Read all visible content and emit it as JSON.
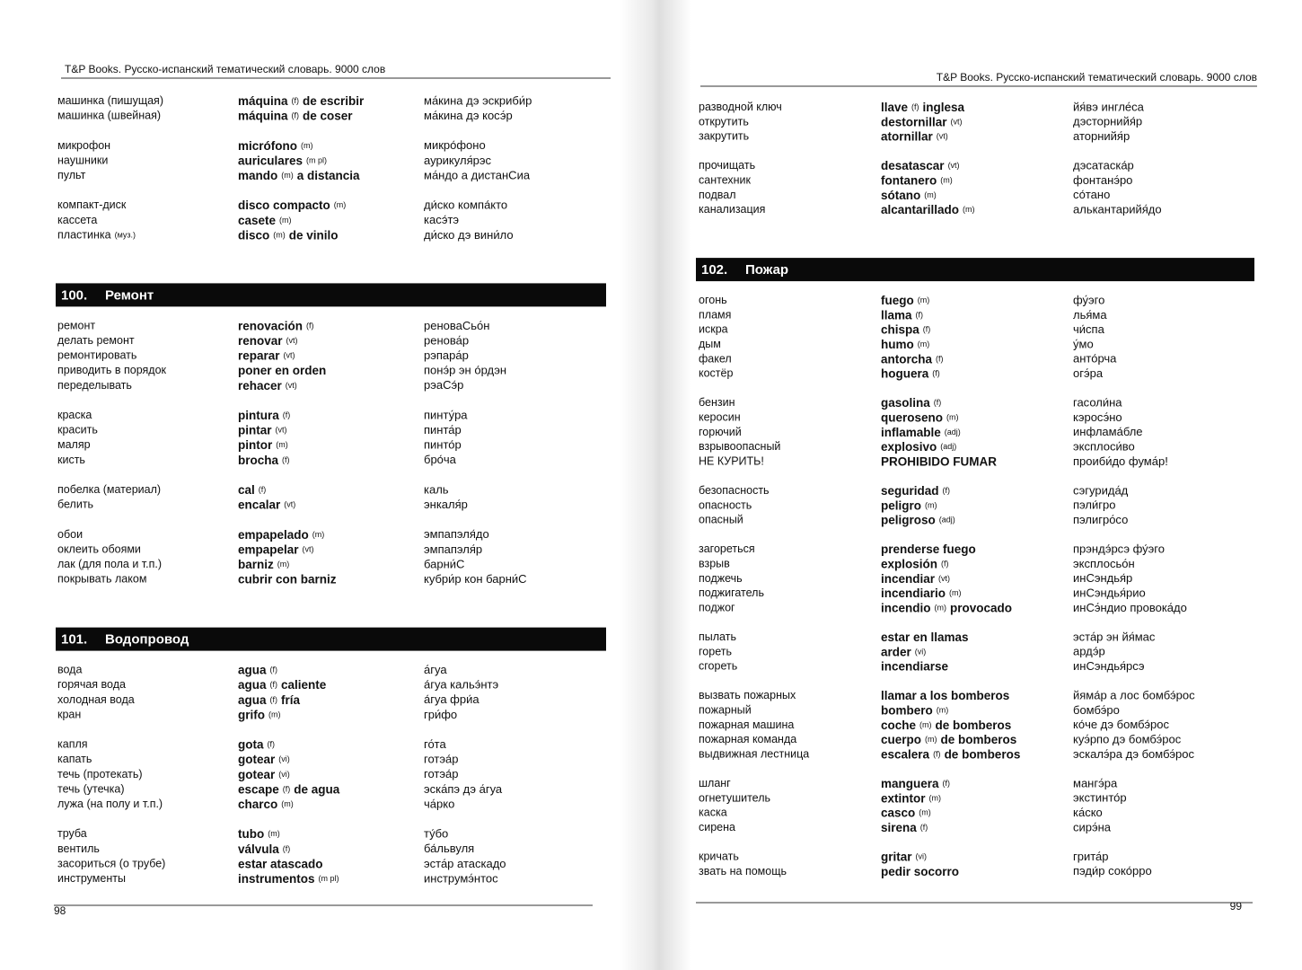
{
  "pages": [
    {
      "header": "T&P Books. Русско-испанский тематический словарь. 9000 слов",
      "page_number": "98",
      "blocks": [
        {
          "groups": [
            [
              {
                "ru": "машинка (пишущая)",
                "es": [
                  "máquina",
                  "(f)",
                  "de escribir"
                ],
                "tr": "ма́кина дэ эскриби́р"
              },
              {
                "ru": "машинка (швейная)",
                "es": [
                  "máquina",
                  "(f)",
                  "de coser"
                ],
                "tr": "ма́кина дэ косэ́р"
              }
            ],
            [
              {
                "ru": "микрофон",
                "es": [
                  "micrófono",
                  "(m)"
                ],
                "tr": "микро́фоно"
              },
              {
                "ru": "наушники",
                "es": [
                  "auriculares",
                  "(m pl)"
                ],
                "tr": "аурикуля́рэс"
              },
              {
                "ru": "пульт",
                "es": [
                  "mando",
                  "(m)",
                  "a distancia"
                ],
                "tr": "ма́ндо а дистанСиа"
              }
            ],
            [
              {
                "ru": "компакт-диск",
                "es": [
                  "disco compacto",
                  "(m)"
                ],
                "tr": "ди́ско компа́кто"
              },
              {
                "ru": "кассета",
                "es": [
                  "casete",
                  "(m)"
                ],
                "tr": "касэ́тэ"
              },
              {
                "ru": "пластинка",
                "ru_note": "(муз.)",
                "es": [
                  "disco",
                  "(m)",
                  "de vinilo"
                ],
                "tr": "ди́ско дэ вини́ло"
              }
            ]
          ]
        },
        {
          "section": {
            "number": "100.",
            "title": "Ремонт"
          },
          "groups": [
            [
              {
                "ru": "ремонт",
                "es": [
                  "renovación",
                  "(f)"
                ],
                "tr": "реноваСьо́н"
              },
              {
                "ru": "делать ремонт",
                "es": [
                  "renovar",
                  "(vt)"
                ],
                "tr": "ренова́р"
              },
              {
                "ru": "ремонтировать",
                "es": [
                  "reparar",
                  "(vt)"
                ],
                "tr": "рэпара́р"
              },
              {
                "ru": "приводить в порядок",
                "es": [
                  "poner en orden"
                ],
                "tr": "понэ́р эн о́рдэн"
              },
              {
                "ru": "переделывать",
                "es": [
                  "rehacer",
                  "(vt)"
                ],
                "tr": "рэаСэ́р"
              }
            ],
            [
              {
                "ru": "краска",
                "es": [
                  "pintura",
                  "(f)"
                ],
                "tr": "пинту́ра"
              },
              {
                "ru": "красить",
                "es": [
                  "pintar",
                  "(vt)"
                ],
                "tr": "пинта́р"
              },
              {
                "ru": "маляр",
                "es": [
                  "pintor",
                  "(m)"
                ],
                "tr": "пинто́р"
              },
              {
                "ru": "кисть",
                "es": [
                  "brocha",
                  "(f)"
                ],
                "tr": "бро́ча"
              }
            ],
            [
              {
                "ru": "побелка (материал)",
                "es": [
                  "cal",
                  "(f)"
                ],
                "tr": "каль"
              },
              {
                "ru": "белить",
                "es": [
                  "encalar",
                  "(vt)"
                ],
                "tr": "энкаля́р"
              }
            ],
            [
              {
                "ru": "обои",
                "es": [
                  "empapelado",
                  "(m)"
                ],
                "tr": "эмпапэля́до"
              },
              {
                "ru": "оклеить обоями",
                "es": [
                  "empapelar",
                  "(vt)"
                ],
                "tr": "эмпапэля́р"
              },
              {
                "ru": "лак (для пола и т.п.)",
                "es": [
                  "barniz",
                  "(m)"
                ],
                "tr": "барни́С"
              },
              {
                "ru": "покрывать лаком",
                "es": [
                  "cubrir con barniz"
                ],
                "tr": "кубри́р кон барни́С"
              }
            ]
          ]
        },
        {
          "section": {
            "number": "101.",
            "title": "Водопровод"
          },
          "groups": [
            [
              {
                "ru": "вода",
                "es": [
                  "agua",
                  "(f)"
                ],
                "tr": "а́гуа"
              },
              {
                "ru": "горячая вода",
                "es": [
                  "agua",
                  "(f)",
                  "caliente"
                ],
                "tr": "а́гуа кальэ́нтэ"
              },
              {
                "ru": "холодная вода",
                "es": [
                  "agua",
                  "(f)",
                  "fría"
                ],
                "tr": "а́гуа фри́а"
              },
              {
                "ru": "кран",
                "es": [
                  "grifo",
                  "(m)"
                ],
                "tr": "гри́фо"
              }
            ],
            [
              {
                "ru": "капля",
                "es": [
                  "gota",
                  "(f)"
                ],
                "tr": "го́та"
              },
              {
                "ru": "капать",
                "es": [
                  "gotear",
                  "(vi)"
                ],
                "tr": "готэа́р"
              },
              {
                "ru": "течь (протекать)",
                "es": [
                  "gotear",
                  "(vi)"
                ],
                "tr": "готэа́р"
              },
              {
                "ru": "течь (утечка)",
                "es": [
                  "escape",
                  "(f)",
                  "de agua"
                ],
                "tr": "эска́пэ дэ а́гуа"
              },
              {
                "ru": "лужа (на полу и т.п.)",
                "es": [
                  "charco",
                  "(m)"
                ],
                "tr": "ча́рко"
              }
            ],
            [
              {
                "ru": "труба",
                "es": [
                  "tubo",
                  "(m)"
                ],
                "tr": "ту́бо"
              },
              {
                "ru": "вентиль",
                "es": [
                  "válvula",
                  "(f)"
                ],
                "tr": "ба́львуля"
              },
              {
                "ru": "засориться (о трубе)",
                "es": [
                  "estar atascado"
                ],
                "tr": "эста́р атаскадо"
              },
              {
                "ru": "инструменты",
                "es": [
                  "instrumentos",
                  "(m pl)"
                ],
                "tr": "инструмэ́нтос"
              }
            ]
          ]
        }
      ]
    },
    {
      "header": "T&P Books. Русско-испанский тематический словарь. 9000 слов",
      "page_number": "99",
      "blocks": [
        {
          "groups": [
            [
              {
                "ru": "разводной ключ",
                "es": [
                  "llave",
                  "(f)",
                  "inglesa"
                ],
                "tr": "йя́вэ ингле́са"
              },
              {
                "ru": "открутить",
                "es": [
                  "destornillar",
                  "(vt)"
                ],
                "tr": "дэсторнийя́р"
              },
              {
                "ru": "закрутить",
                "es": [
                  "atornillar",
                  "(vt)"
                ],
                "tr": "аторнийя́р"
              }
            ],
            [
              {
                "ru": "прочищать",
                "es": [
                  "desatascar",
                  "(vt)"
                ],
                "tr": "дэсатаска́р"
              },
              {
                "ru": "сантехник",
                "es": [
                  "fontanero",
                  "(m)"
                ],
                "tr": "фонтанэ́ро"
              },
              {
                "ru": "подвал",
                "es": [
                  "sótano",
                  "(m)"
                ],
                "tr": "со́тано"
              },
              {
                "ru": "канализация",
                "es": [
                  "alcantarillado",
                  "(m)"
                ],
                "tr": "алькантарийя́до"
              }
            ]
          ]
        },
        {
          "section": {
            "number": "102.",
            "title": "Пожар"
          },
          "groups": [
            [
              {
                "ru": "огонь",
                "es": [
                  "fuego",
                  "(m)"
                ],
                "tr": "фу́эго"
              },
              {
                "ru": "пламя",
                "es": [
                  "llama",
                  "(f)"
                ],
                "tr": "лья́ма"
              },
              {
                "ru": "искра",
                "es": [
                  "chispa",
                  "(f)"
                ],
                "tr": "чи́спа"
              },
              {
                "ru": "дым",
                "es": [
                  "humo",
                  "(m)"
                ],
                "tr": "у́мо"
              },
              {
                "ru": "факел",
                "es": [
                  "antorcha",
                  "(f)"
                ],
                "tr": "анто́рча"
              },
              {
                "ru": "костёр",
                "es": [
                  "hoguera",
                  "(f)"
                ],
                "tr": "огэ́ра"
              }
            ],
            [
              {
                "ru": "бензин",
                "es": [
                  "gasolina",
                  "(f)"
                ],
                "tr": "гасоли́на"
              },
              {
                "ru": "керосин",
                "es": [
                  "queroseno",
                  "(m)"
                ],
                "tr": "кэросэ́но"
              },
              {
                "ru": "горючий",
                "es": [
                  "inflamable",
                  "(adj)"
                ],
                "tr": "инфлама́бле"
              },
              {
                "ru": "взрывоопасный",
                "es": [
                  "explosivo",
                  "(adj)"
                ],
                "tr": "эксплоси́во"
              },
              {
                "ru": "НЕ КУРИТЬ!",
                "es": [
                  "PROHIBIDO FUMAR"
                ],
                "tr": "проиби́до фума́р!"
              }
            ],
            [
              {
                "ru": "безопасность",
                "es": [
                  "seguridad",
                  "(f)"
                ],
                "tr": "сэгурида́д"
              },
              {
                "ru": "опасность",
                "es": [
                  "peligro",
                  "(m)"
                ],
                "tr": "пэли́гро"
              },
              {
                "ru": "опасный",
                "es": [
                  "peligroso",
                  "(adj)"
                ],
                "tr": "пэлигро́со"
              }
            ],
            [
              {
                "ru": "загореться",
                "es": [
                  "prenderse fuego"
                ],
                "tr": "прэндэ́рсэ фу́эго"
              },
              {
                "ru": "взрыв",
                "es": [
                  "explosión",
                  "(f)"
                ],
                "tr": "эксплосьо́н"
              },
              {
                "ru": "поджечь",
                "es": [
                  "incendiar",
                  "(vt)"
                ],
                "tr": "инСэндья́р"
              },
              {
                "ru": "поджигатель",
                "es": [
                  "incendiario",
                  "(m)"
                ],
                "tr": "инСэндья́рио"
              },
              {
                "ru": "поджог",
                "es": [
                  "incendio",
                  "(m)",
                  "provocado"
                ],
                "tr": "инСэ́ндио провока́до"
              }
            ],
            [
              {
                "ru": "пылать",
                "es": [
                  "estar en llamas"
                ],
                "tr": "эста́р эн йя́мас"
              },
              {
                "ru": "гореть",
                "es": [
                  "arder",
                  "(vi)"
                ],
                "tr": "ардэ́р"
              },
              {
                "ru": "сгореть",
                "es": [
                  "incendiarse"
                ],
                "tr": "инСэндья́рсэ"
              }
            ],
            [
              {
                "ru": "вызвать пожарных",
                "es": [
                  "llamar a los bomberos"
                ],
                "tr": "йяма́р а лос бомбэ́рос"
              },
              {
                "ru": "пожарный",
                "es": [
                  "bombero",
                  "(m)"
                ],
                "tr": "бомбэ́ро"
              },
              {
                "ru": "пожарная машина",
                "es": [
                  "coche",
                  "(m)",
                  "de bomberos"
                ],
                "tr": "ко́че дэ бомбэ́рос"
              },
              {
                "ru": "пожарная команда",
                "es": [
                  "cuerpo",
                  "(m)",
                  "de bomberos"
                ],
                "tr": "куэ́рпо дэ бомбэ́рос"
              },
              {
                "ru": "выдвижная лестница",
                "es": [
                  "escalera",
                  "(f)",
                  "de bomberos"
                ],
                "tr": "эскалэ́ра дэ бомбэ́рос"
              }
            ],
            [
              {
                "ru": "шланг",
                "es": [
                  "manguera",
                  "(f)"
                ],
                "tr": "мангэ́ра"
              },
              {
                "ru": "огнетушитель",
                "es": [
                  "extintor",
                  "(m)"
                ],
                "tr": "экстинто́р"
              },
              {
                "ru": "каска",
                "es": [
                  "casco",
                  "(m)"
                ],
                "tr": "ка́ско"
              },
              {
                "ru": "сирена",
                "es": [
                  "sirena",
                  "(f)"
                ],
                "tr": "сирэ́на"
              }
            ],
            [
              {
                "ru": "кричать",
                "es": [
                  "gritar",
                  "(vi)"
                ],
                "tr": "грита́р"
              },
              {
                "ru": "звать на помощь",
                "es": [
                  "pedir socorro"
                ],
                "tr": "пэди́р соко́рро"
              }
            ]
          ]
        }
      ]
    }
  ]
}
